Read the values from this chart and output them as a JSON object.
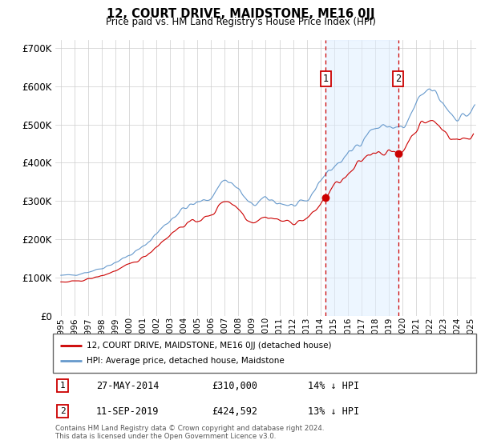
{
  "title": "12, COURT DRIVE, MAIDSTONE, ME16 0JJ",
  "subtitle": "Price paid vs. HM Land Registry's House Price Index (HPI)",
  "footer": "Contains HM Land Registry data © Crown copyright and database right 2024.\nThis data is licensed under the Open Government Licence v3.0.",
  "legend_line1": "12, COURT DRIVE, MAIDSTONE, ME16 0JJ (detached house)",
  "legend_line2": "HPI: Average price, detached house, Maidstone",
  "annotation1_label": "1",
  "annotation1_date": "27-MAY-2014",
  "annotation1_price": "£310,000",
  "annotation1_hpi": "14% ↓ HPI",
  "annotation2_label": "2",
  "annotation2_date": "11-SEP-2019",
  "annotation2_price": "£424,592",
  "annotation2_hpi": "13% ↓ HPI",
  "vline1_x": 2014.38,
  "vline2_x": 2019.7,
  "marker1_x": 2014.38,
  "marker1_y": 310000,
  "marker2_x": 2019.7,
  "marker2_y": 424592,
  "ylim": [
    0,
    720000
  ],
  "xlim_start": 1994.6,
  "xlim_end": 2025.4,
  "hpi_color": "#6699cc",
  "price_color": "#cc0000",
  "grid_color": "#cccccc",
  "background_color": "#ffffff",
  "plot_bg_color": "#ffffff",
  "vline_color": "#cc0000",
  "span_color": "#ddeeff",
  "span_alpha": 0.5
}
